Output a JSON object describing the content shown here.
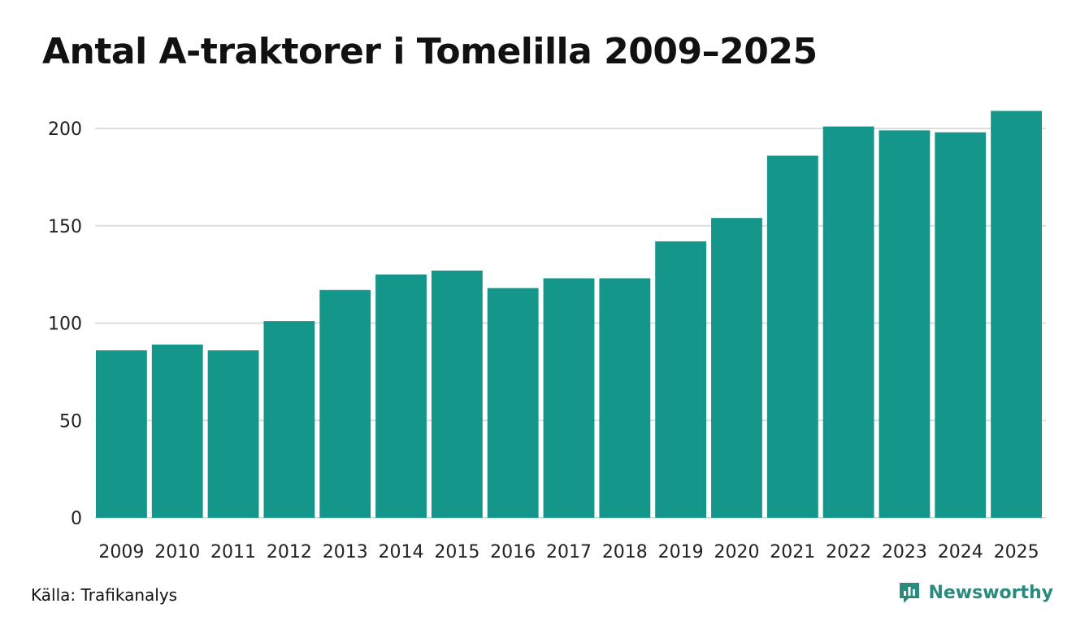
{
  "title": "Antal A-traktorer i Tomelilla 2009–2025",
  "source": "Källa: Trafikanalys",
  "brand": {
    "name": "Newsworthy",
    "icon": "newsworthy-logo-icon"
  },
  "colors": {
    "bar": "#14968a",
    "grid": "#dddddd",
    "brand": "#2a8a7c"
  },
  "chart_data": {
    "type": "bar",
    "title": "Antal A-traktorer i Tomelilla 2009–2025",
    "xlabel": "",
    "ylabel": "",
    "categories": [
      "2009",
      "2010",
      "2011",
      "2012",
      "2013",
      "2014",
      "2015",
      "2016",
      "2017",
      "2018",
      "2019",
      "2020",
      "2021",
      "2022",
      "2023",
      "2024",
      "2025"
    ],
    "values": [
      86,
      89,
      86,
      101,
      117,
      125,
      127,
      118,
      123,
      123,
      142,
      154,
      186,
      201,
      199,
      198,
      209
    ],
    "ylim": [
      0,
      210
    ],
    "yticks": [
      0,
      50,
      100,
      150,
      200
    ],
    "grid": true,
    "legend": "none"
  }
}
